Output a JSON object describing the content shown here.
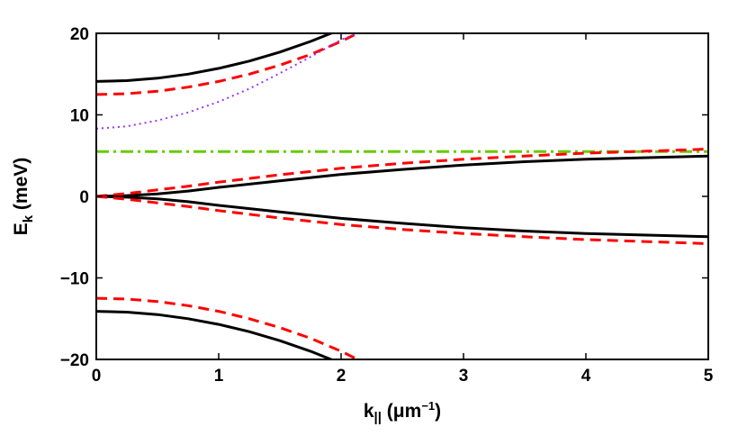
{
  "chart_data": {
    "type": "line",
    "title": "",
    "xlabel": {
      "main": "k",
      "sub": "||",
      "unit_open": " (",
      "unit_mu": "μ",
      "unit_m": "m",
      "unit_exp": "−1",
      "unit_close": ")"
    },
    "ylabel": {
      "main": "E",
      "sub": "k",
      "unit": " (meV)"
    },
    "xlim": [
      0,
      5
    ],
    "ylim": [
      -20,
      20
    ],
    "xticks": [
      0,
      1,
      2,
      3,
      4,
      5
    ],
    "xtick_labels": [
      "0",
      "1",
      "2",
      "3",
      "4",
      "5"
    ],
    "yticks": [
      -20,
      -10,
      0,
      10,
      20
    ],
    "ytick_labels": [
      "−20",
      "−10",
      "0",
      "10",
      "20"
    ],
    "grid": false,
    "legend": "none",
    "series": [
      {
        "style": "solid",
        "color": "#000000",
        "x": [
          0,
          0.25,
          0.5,
          0.75,
          1.0,
          1.25,
          1.5,
          1.75,
          2.0
        ],
        "y": [
          14.1,
          14.2,
          14.5,
          15.0,
          15.7,
          16.6,
          17.7,
          19.0,
          20.5
        ]
      },
      {
        "style": "dashed",
        "color": "#ff0000",
        "x": [
          0,
          0.25,
          0.5,
          0.75,
          1.0,
          1.25,
          1.5,
          1.75,
          2.0,
          2.2
        ],
        "y": [
          12.5,
          12.6,
          12.9,
          13.4,
          14.1,
          15.0,
          16.1,
          17.4,
          19.0,
          20.5
        ]
      },
      {
        "style": "dotted",
        "color": "#9933ff",
        "x": [
          0,
          0.25,
          0.5,
          0.75,
          1.0,
          1.25,
          1.5,
          1.75,
          2.0,
          2.3
        ],
        "y": [
          8.3,
          8.6,
          9.3,
          10.3,
          11.6,
          13.2,
          15.1,
          17.1,
          19.2,
          21.0
        ]
      },
      {
        "style": "dashdot",
        "color": "#66cc00",
        "x": [
          0,
          5
        ],
        "y": [
          5.5,
          5.5
        ]
      },
      {
        "style": "solid",
        "color": "#000000",
        "x": [
          0,
          0.25,
          0.5,
          0.75,
          1.0,
          1.5,
          2.0,
          2.5,
          3.0,
          3.5,
          4.0,
          4.5,
          5.0
        ],
        "y": [
          0,
          0.1,
          0.3,
          0.65,
          1.1,
          1.9,
          2.7,
          3.3,
          3.85,
          4.25,
          4.55,
          4.75,
          4.95
        ]
      },
      {
        "style": "dashed",
        "color": "#ff0000",
        "x": [
          0,
          0.25,
          0.5,
          0.75,
          1.0,
          1.5,
          2.0,
          2.5,
          3.0,
          3.5,
          4.0,
          4.5,
          5.0
        ],
        "y": [
          0,
          0.35,
          0.8,
          1.25,
          1.75,
          2.65,
          3.45,
          4.05,
          4.55,
          4.95,
          5.3,
          5.55,
          5.8
        ]
      },
      {
        "style": "solid",
        "color": "#000000",
        "x": [
          0,
          0.25,
          0.5,
          0.75,
          1.0,
          1.5,
          2.0,
          2.5,
          3.0,
          3.5,
          4.0,
          4.5,
          5.0
        ],
        "y": [
          0,
          -0.1,
          -0.3,
          -0.65,
          -1.1,
          -1.9,
          -2.7,
          -3.3,
          -3.85,
          -4.25,
          -4.55,
          -4.75,
          -4.95
        ]
      },
      {
        "style": "dashed",
        "color": "#ff0000",
        "x": [
          0,
          0.25,
          0.5,
          0.75,
          1.0,
          1.5,
          2.0,
          2.5,
          3.0,
          3.5,
          4.0,
          4.5,
          5.0
        ],
        "y": [
          0,
          -0.35,
          -0.8,
          -1.25,
          -1.75,
          -2.65,
          -3.45,
          -4.05,
          -4.55,
          -4.95,
          -5.3,
          -5.55,
          -5.8
        ]
      },
      {
        "style": "solid",
        "color": "#000000",
        "x": [
          0,
          0.25,
          0.5,
          0.75,
          1.0,
          1.25,
          1.5,
          1.75,
          2.0
        ],
        "y": [
          -14.1,
          -14.2,
          -14.5,
          -15.0,
          -15.7,
          -16.6,
          -17.7,
          -19.0,
          -20.5
        ]
      },
      {
        "style": "dashed",
        "color": "#ff0000",
        "x": [
          0,
          0.25,
          0.5,
          0.75,
          1.0,
          1.25,
          1.5,
          1.75,
          2.0,
          2.2
        ],
        "y": [
          -12.5,
          -12.6,
          -12.9,
          -13.4,
          -14.1,
          -15.0,
          -16.1,
          -17.4,
          -19.0,
          -20.5
        ]
      }
    ]
  }
}
